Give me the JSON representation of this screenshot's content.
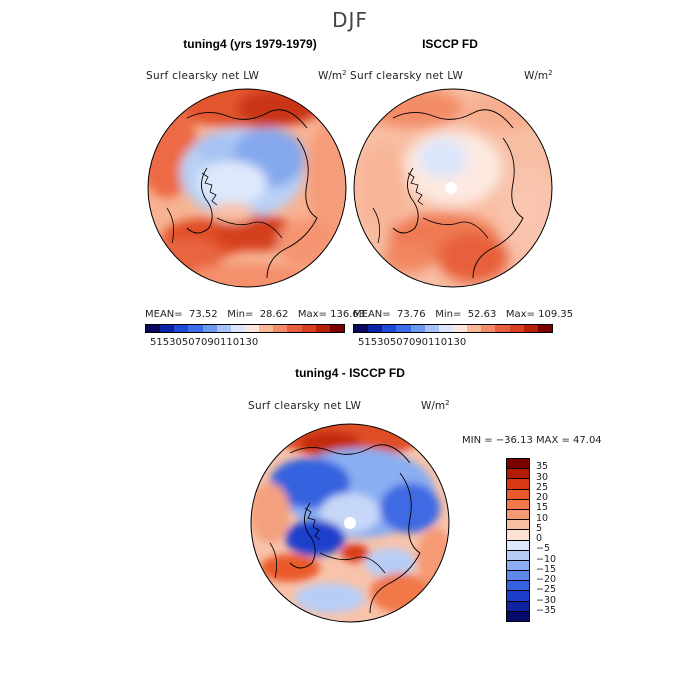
{
  "season": "DJF",
  "colors": {
    "scale": [
      "#08085c",
      "#0a23a6",
      "#1d48d8",
      "#3b6de8",
      "#6e98ef",
      "#a7c3f5",
      "#d9e6fb",
      "#fde7dc",
      "#f8b799",
      "#f38b66",
      "#e7603d",
      "#d73f1e",
      "#b52208",
      "#7a0000"
    ],
    "diff_scale": [
      "#7a0000",
      "#b31a00",
      "#d73a12",
      "#ea5a2c",
      "#f1784a",
      "#f59a75",
      "#f8bfa3",
      "#fde3d6",
      "#dfe8fb",
      "#b8cdf6",
      "#8aaef1",
      "#5d88ea",
      "#3462de",
      "#1b3fcc",
      "#0d23a2",
      "#050a6a"
    ]
  },
  "panels": [
    {
      "title": "tuning4 (yrs 1979-1979)",
      "variable": "Surf clearsky net LW",
      "units": "W/m",
      "units_exp": "2",
      "mean_label": "MEAN=",
      "mean": "73.52",
      "min_label": "Min=",
      "min": "28.62",
      "max_label": "Max=",
      "max": "136.63"
    },
    {
      "title": "ISCCP FD",
      "variable": "Surf clearsky net LW",
      "units": "W/m",
      "units_exp": "2",
      "mean_label": "MEAN=",
      "mean": "73.76",
      "min_label": "Min=",
      "min": "52.63",
      "max_label": "Max=",
      "max": "109.35"
    }
  ],
  "colorbar_ticks": [
    "5",
    "15",
    "30",
    "50",
    "70",
    "90",
    "110",
    "130"
  ],
  "diff": {
    "title": "tuning4 - ISCCP FD",
    "variable": "Surf clearsky net LW",
    "units": "W/m",
    "units_exp": "2",
    "range_text": "MIN = −36.13 MAX =  47.04",
    "ticks": [
      "35",
      "30",
      "25",
      "20",
      "15",
      "10",
      "5",
      "0",
      "−5",
      "−10",
      "−15",
      "−20",
      "−25",
      "−30",
      "−35"
    ]
  }
}
